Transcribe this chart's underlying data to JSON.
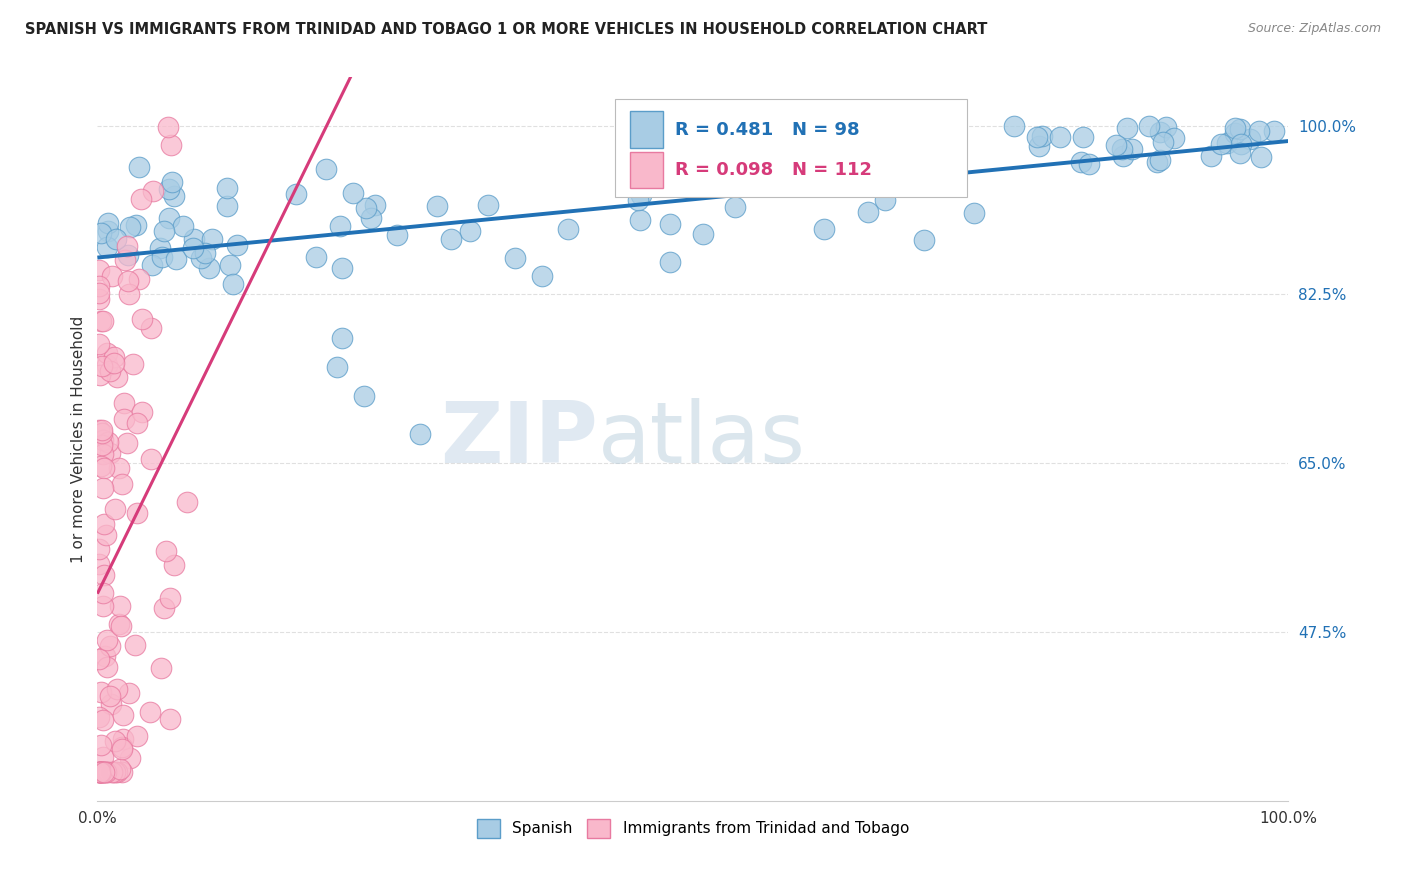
{
  "title": "SPANISH VS IMMIGRANTS FROM TRINIDAD AND TOBAGO 1 OR MORE VEHICLES IN HOUSEHOLD CORRELATION CHART",
  "source": "Source: ZipAtlas.com",
  "ylabel": "1 or more Vehicles in Household",
  "ytick_labels": [
    "100.0%",
    "82.5%",
    "65.0%",
    "47.5%"
  ],
  "ytick_values": [
    1.0,
    0.825,
    0.65,
    0.475
  ],
  "xlim": [
    0.0,
    1.0
  ],
  "ylim": [
    0.3,
    1.05
  ],
  "legend_label1": "Spanish",
  "legend_label2": "Immigrants from Trinidad and Tobago",
  "r1": 0.481,
  "n1": 98,
  "r2": 0.098,
  "n2": 112,
  "blue_fill": "#a8cce4",
  "blue_edge": "#5b9dc9",
  "pink_fill": "#f9b8cb",
  "pink_edge": "#e87aa0",
  "blue_line_color": "#2171b5",
  "pink_line_color": "#d63b7a",
  "watermark_zip": "ZIP",
  "watermark_atlas": "atlas",
  "background_color": "#ffffff",
  "grid_color": "#e0e0e0"
}
